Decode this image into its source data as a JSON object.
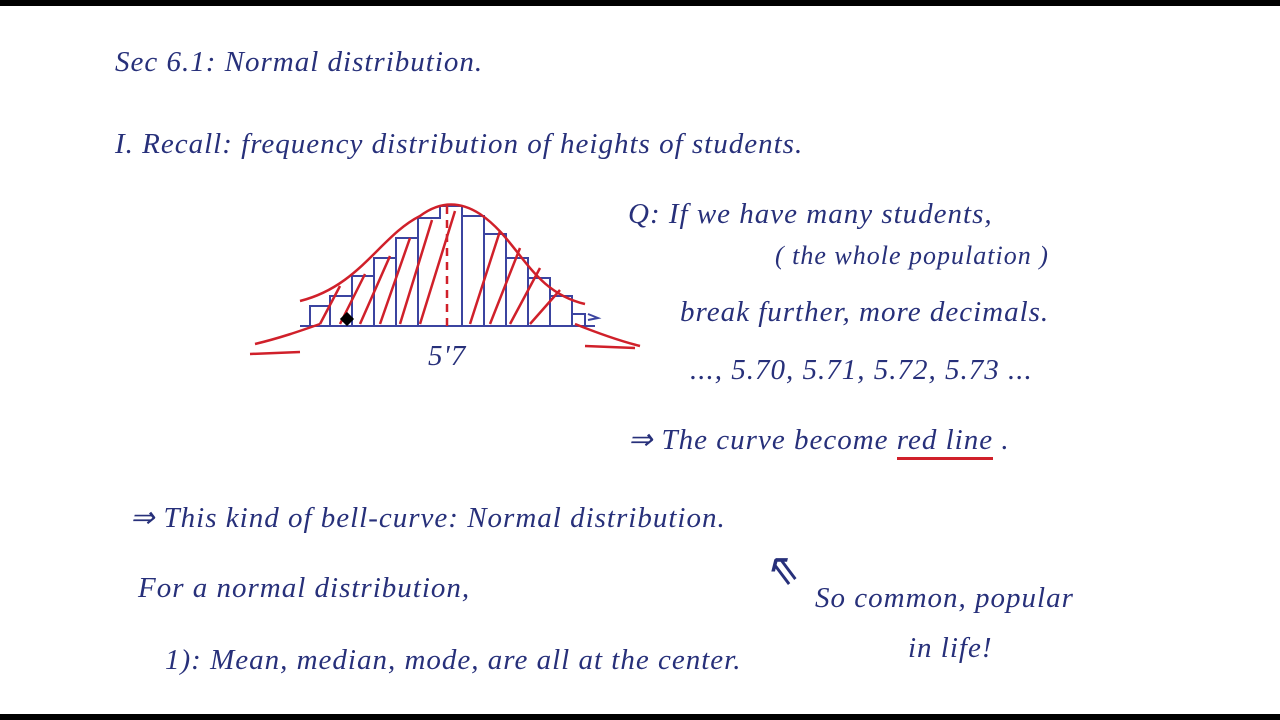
{
  "header": {
    "title": "Sec 6.1: Normal distribution."
  },
  "recall": "I. Recall: frequency distribution of heights of students.",
  "figure": {
    "label": "5'7"
  },
  "question": {
    "q": "Q: If we have many students,",
    "paren": "( the whole population )",
    "further": "break further, more decimals.",
    "decimals": "..., 5.70, 5.71, 5.72, 5.73 ...",
    "result_prefix": "⇒ The curve become",
    "result_highlight": "red line",
    "result_suffix": "."
  },
  "bell": "⇒ This kind of bell-curve: Normal distribution.",
  "for_normal": "For a normal distribution,",
  "note": {
    "arrow": "⇖",
    "line1": "So common, popular",
    "line2": "in life!"
  },
  "points": [
    "1): Mean, median, mode, are all at the center."
  ]
}
